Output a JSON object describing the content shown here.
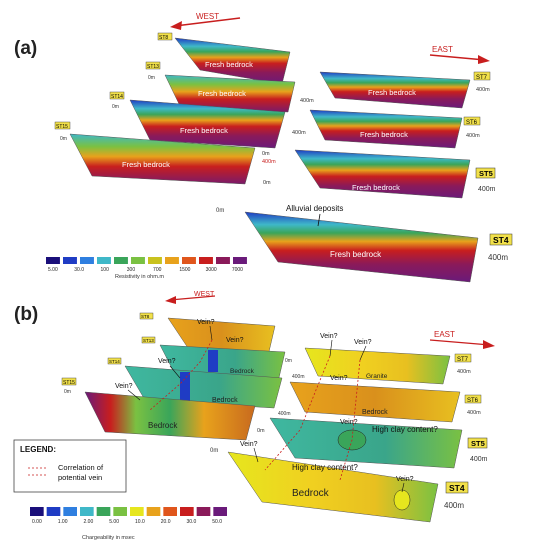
{
  "panel_a": {
    "label": "(a)",
    "west": "WEST",
    "east": "EAST",
    "stations": [
      "ST8",
      "ST7",
      "ST6",
      "ST5",
      "ST4",
      "ST13",
      "ST14",
      "ST15"
    ],
    "distance_labels": [
      "400m",
      "400m",
      "400m",
      "400m",
      "400m",
      "400m",
      "400m"
    ],
    "zero_labels": [
      "0m",
      "0m",
      "0m",
      "0m",
      "0m",
      "0m"
    ],
    "annotations": {
      "fresh_bedrock": "Fresh bedrock",
      "alluvial": "Alluvial deposits"
    },
    "scale": {
      "ticks": [
        "5.00",
        "30.0",
        "100",
        "300",
        "700",
        "1500",
        "3000",
        "7000"
      ],
      "title": "Resistivity in ohm.m",
      "colors": [
        "#1a0f7a",
        "#1f3cc4",
        "#2f7fe0",
        "#3fb8c8",
        "#3aa55a",
        "#7ac142",
        "#c9c21e",
        "#e8a21c",
        "#e0561c",
        "#c81e1e",
        "#8a1a5a",
        "#6a1a7a"
      ]
    }
  },
  "panel_b": {
    "label": "(b)",
    "west": "WEST",
    "east": "EAST",
    "stations": [
      "ST8",
      "ST7",
      "ST6",
      "ST5",
      "ST4",
      "ST13",
      "ST14",
      "ST15"
    ],
    "distance_labels": [
      "400m",
      "400m",
      "400m",
      "400m",
      "400m",
      "400m"
    ],
    "zero_labels": [
      "0m",
      "0m",
      "0m",
      "0m"
    ],
    "annotations": {
      "vein": "Vein?",
      "bedrock": "Bedrock",
      "granite": "Granite",
      "clay": "High clay content?"
    },
    "legend": {
      "title": "LEGEND:",
      "item": "Correlation of potential vein"
    },
    "scale": {
      "ticks": [
        "0.00",
        "1.00",
        "2.00",
        "5.00",
        "10.0",
        "20.0",
        "30.0",
        "50.0"
      ],
      "title": "Chargeability in msec",
      "colors": [
        "#1a0f7a",
        "#1f3cc4",
        "#2f7fe0",
        "#3fb8c8",
        "#3aa55a",
        "#7ac142",
        "#e6e61e",
        "#e8a21c",
        "#e0561c",
        "#c81e1e",
        "#8a1a5a",
        "#6a1a7a"
      ]
    }
  }
}
